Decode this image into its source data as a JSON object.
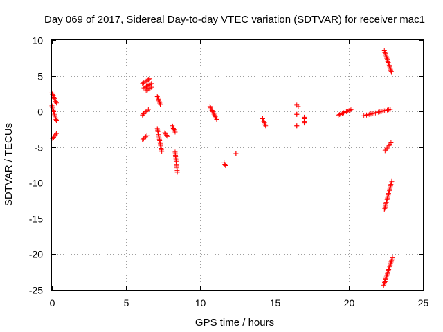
{
  "chart_data": {
    "type": "scatter",
    "title": "Day 069 of 2017, Sidereal Day-to-day VTEC variation (SDTVAR) for receiver mac1",
    "xlabel": "GPS time / hours",
    "ylabel": "SDTVAR / TECUs",
    "xlim": [
      0,
      25
    ],
    "ylim": [
      -25,
      10
    ],
    "xticks": [
      0,
      5,
      10,
      15,
      20,
      25
    ],
    "yticks": [
      -25,
      -20,
      -15,
      -10,
      -5,
      0,
      5,
      10
    ],
    "xtick_labels": [
      "0",
      "5",
      "10",
      "15",
      "20",
      "25"
    ],
    "ytick_labels": [
      "-25",
      "-20",
      "-15",
      "-10",
      "-5",
      "0",
      "5",
      "10"
    ],
    "grid": true,
    "marker": "+",
    "color": "#ff0000",
    "series": [
      {
        "name": "SDTVAR",
        "segments": [
          {
            "x": [
              0.0,
              0.3
            ],
            "y": [
              2.6,
              1.2
            ]
          },
          {
            "x": [
              0.0,
              0.3
            ],
            "y": [
              0.8,
              -1.3
            ]
          },
          {
            "x": [
              0.05,
              0.3
            ],
            "y": [
              -3.8,
              -3.1
            ]
          },
          {
            "x": [
              6.1,
              6.6
            ],
            "y": [
              3.9,
              4.6
            ]
          },
          {
            "x": [
              6.2,
              6.7
            ],
            "y": [
              3.3,
              3.9
            ]
          },
          {
            "x": [
              6.35,
              6.7
            ],
            "y": [
              2.9,
              3.4
            ]
          },
          {
            "x": [
              6.1,
              6.5
            ],
            "y": [
              -0.5,
              0.3
            ]
          },
          {
            "x": [
              6.1,
              6.4
            ],
            "y": [
              -4.0,
              -3.4
            ]
          },
          {
            "x": [
              7.1,
              7.3
            ],
            "y": [
              2.1,
              1.0
            ]
          },
          {
            "x": [
              7.1,
              7.4
            ],
            "y": [
              -2.4,
              -5.6
            ]
          },
          {
            "x": [
              7.6,
              7.8
            ],
            "y": [
              -3.0,
              -3.5
            ]
          },
          {
            "x": [
              8.1,
              8.3
            ],
            "y": [
              -2.0,
              -2.9
            ]
          },
          {
            "x": [
              8.3,
              8.45
            ],
            "y": [
              -5.7,
              -8.5
            ]
          },
          {
            "x": [
              10.65,
              11.1
            ],
            "y": [
              0.7,
              -1.1
            ]
          },
          {
            "x": [
              11.6,
              11.7
            ],
            "y": [
              -7.2,
              -7.6
            ]
          },
          {
            "x": [
              12.4,
              12.4
            ],
            "y": [
              -5.9,
              -5.9
            ]
          },
          {
            "x": [
              14.2,
              14.4
            ],
            "y": [
              -1.0,
              -2.0
            ]
          },
          {
            "x": [
              16.5,
              16.6
            ],
            "y": [
              0.9,
              0.7
            ]
          },
          {
            "x": [
              16.5,
              16.5
            ],
            "y": [
              -0.4,
              -0.4
            ]
          },
          {
            "x": [
              16.5,
              16.5
            ],
            "y": [
              -2.0,
              -2.0
            ]
          },
          {
            "x": [
              17.0,
              17.0
            ],
            "y": [
              -0.8,
              -1.6
            ]
          },
          {
            "x": [
              19.3,
              20.2
            ],
            "y": [
              -0.5,
              0.3
            ]
          },
          {
            "x": [
              21.0,
              22.8
            ],
            "y": [
              -0.6,
              0.3
            ]
          },
          {
            "x": [
              22.4,
              22.9
            ],
            "y": [
              8.5,
              5.4
            ]
          },
          {
            "x": [
              22.45,
              22.85
            ],
            "y": [
              -5.5,
              -4.4
            ]
          },
          {
            "x": [
              22.4,
              22.9
            ],
            "y": [
              -13.8,
              -9.8
            ]
          },
          {
            "x": [
              22.35,
              22.95
            ],
            "y": [
              -24.4,
              -20.5
            ]
          }
        ]
      }
    ]
  }
}
